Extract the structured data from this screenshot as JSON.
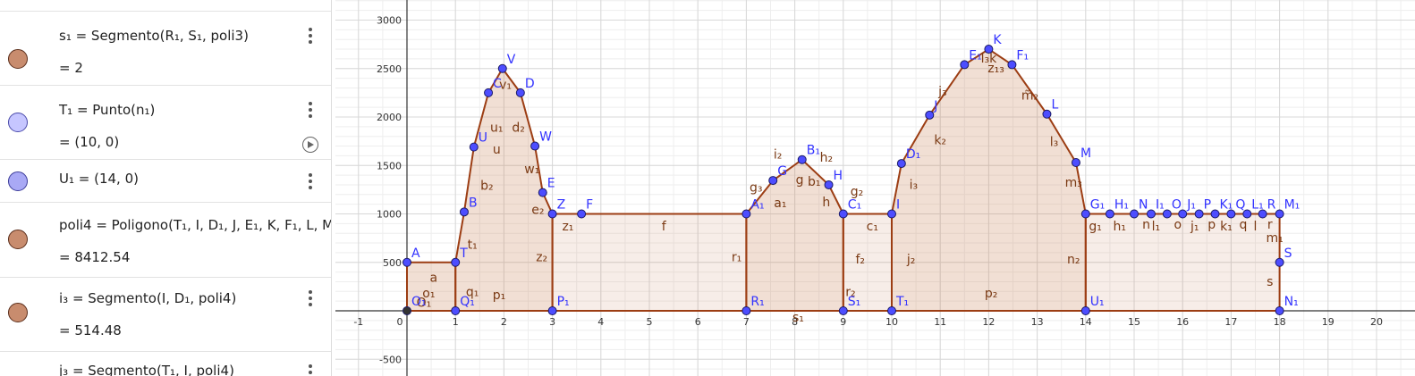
{
  "algebra": {
    "rows": [
      {
        "def": "s₁ = Segmento(R₁, S₁, poli3)",
        "value": "= 2",
        "color": "brown"
      },
      {
        "def": "T₁ = Punto(n₁)",
        "value": "= (10, 0)",
        "color": "blue"
      },
      {
        "def": "U₁ = (14, 0)",
        "value": "",
        "color": "blue2"
      },
      {
        "def": "poli4 = Poligono(T₁, I, D₁, J, E₁, K, F₁, L, M",
        "value": "= 8412.54",
        "color": "brown"
      },
      {
        "def": "i₃ = Segmento(I, D₁, poli4)",
        "value": "= 514.48",
        "color": "brown"
      },
      {
        "def": "j₃ = Segmento(T₁, I, poli4)",
        "value": "",
        "color": "brown"
      }
    ]
  },
  "graph": {
    "x_ticks": [
      "-1",
      "0",
      "1",
      "2",
      "3",
      "4",
      "5",
      "6",
      "7",
      "8",
      "9",
      "10",
      "11",
      "12",
      "13",
      "14",
      "15",
      "16",
      "17",
      "18",
      "19",
      "20"
    ],
    "y_ticks": [
      "3000",
      "2500",
      "2000",
      "1500",
      "1000",
      "500",
      "-500"
    ],
    "colors": {
      "segment": "#9c3d13",
      "fill": "#c8825a",
      "point": "#4d4dff",
      "label_point": "#3333ff",
      "label_segment": "#7a3a14"
    },
    "points": [
      {
        "x": 0,
        "y": 500,
        "label": "A"
      },
      {
        "x": 1,
        "y": 500,
        "label": "T"
      },
      {
        "x": 1.18,
        "y": 1020,
        "label": "B"
      },
      {
        "x": 1.38,
        "y": 1690,
        "label": "U"
      },
      {
        "x": 1.68,
        "y": 2250,
        "label": "C"
      },
      {
        "x": 1.97,
        "y": 2500,
        "label": "V"
      },
      {
        "x": 2.34,
        "y": 2250,
        "label": "D"
      },
      {
        "x": 2.64,
        "y": 1700,
        "label": "W"
      },
      {
        "x": 2.8,
        "y": 1220,
        "label": "E"
      },
      {
        "x": 3,
        "y": 1000,
        "label": "Z"
      },
      {
        "x": 3.6,
        "y": 1000,
        "label": "F"
      },
      {
        "x": 7,
        "y": 1000,
        "label": "A₁"
      },
      {
        "x": 7.55,
        "y": 1345,
        "label": "G"
      },
      {
        "x": 8.15,
        "y": 1560,
        "label": "B₁"
      },
      {
        "x": 8.7,
        "y": 1300,
        "label": "H"
      },
      {
        "x": 9,
        "y": 1000,
        "label": "C₁"
      },
      {
        "x": 10,
        "y": 1000,
        "label": "I"
      },
      {
        "x": 10.2,
        "y": 1520,
        "label": "D₁"
      },
      {
        "x": 10.78,
        "y": 2020,
        "label": "J"
      },
      {
        "x": 11.5,
        "y": 2540,
        "label": "E₁"
      },
      {
        "x": 12,
        "y": 2700,
        "label": "K"
      },
      {
        "x": 12.48,
        "y": 2540,
        "label": "F₁"
      },
      {
        "x": 13.2,
        "y": 2030,
        "label": "L"
      },
      {
        "x": 13.8,
        "y": 1530,
        "label": "M"
      },
      {
        "x": 14,
        "y": 1000,
        "label": "G₁"
      },
      {
        "x": 14.5,
        "y": 1000,
        "label": "H₁"
      },
      {
        "x": 15,
        "y": 1000,
        "label": "N"
      },
      {
        "x": 15.35,
        "y": 1000,
        "label": "I₁"
      },
      {
        "x": 15.68,
        "y": 1000,
        "label": "O"
      },
      {
        "x": 16,
        "y": 1000,
        "label": "J₁"
      },
      {
        "x": 16.34,
        "y": 1000,
        "label": "P"
      },
      {
        "x": 16.67,
        "y": 1000,
        "label": "K₁"
      },
      {
        "x": 17,
        "y": 1000,
        "label": "Q"
      },
      {
        "x": 17.33,
        "y": 1000,
        "label": "L₁"
      },
      {
        "x": 17.65,
        "y": 1000,
        "label": "R"
      },
      {
        "x": 18,
        "y": 1000,
        "label": "M₁"
      },
      {
        "x": 18,
        "y": 500,
        "label": "S"
      },
      {
        "x": 18,
        "y": 0,
        "label": "N₁"
      },
      {
        "x": 14,
        "y": 0,
        "label": "U₁"
      },
      {
        "x": 10,
        "y": 0,
        "label": "T₁"
      },
      {
        "x": 9,
        "y": 0,
        "label": "S₁"
      },
      {
        "x": 7,
        "y": 0,
        "label": "R₁"
      },
      {
        "x": 3,
        "y": 0,
        "label": "P₁"
      },
      {
        "x": 1,
        "y": 0,
        "label": "Q₁"
      },
      {
        "x": 0,
        "y": 0,
        "label": "O₁",
        "black": true
      }
    ],
    "segment_labels": [
      {
        "x": 0.45,
        "y": 140,
        "t": "o₁"
      },
      {
        "x": 0.55,
        "y": 300,
        "t": "a"
      },
      {
        "x": 0.35,
        "y": 40,
        "t": "O₁"
      },
      {
        "x": 1.35,
        "y": 150,
        "t": "q₁"
      },
      {
        "x": 1.9,
        "y": 120,
        "t": "p₁"
      },
      {
        "x": 1.35,
        "y": 640,
        "t": "t₁"
      },
      {
        "x": 1.65,
        "y": 1250,
        "t": "b₂"
      },
      {
        "x": 1.85,
        "y": 1620,
        "t": "u"
      },
      {
        "x": 1.85,
        "y": 1850,
        "t": "u₁"
      },
      {
        "x": 2.03,
        "y": 2290,
        "t": "v₁"
      },
      {
        "x": 2.3,
        "y": 1850,
        "t": "d₂"
      },
      {
        "x": 2.58,
        "y": 1420,
        "t": "w₁"
      },
      {
        "x": 2.7,
        "y": 1000,
        "t": "e₂"
      },
      {
        "x": 2.78,
        "y": 510,
        "t": "z₂"
      },
      {
        "x": 3.32,
        "y": 830,
        "t": "z₁"
      },
      {
        "x": 5.3,
        "y": 830,
        "t": "f"
      },
      {
        "x": 6.8,
        "y": 510,
        "t": "r₁"
      },
      {
        "x": 7.2,
        "y": 1230,
        "t": "g₃"
      },
      {
        "x": 7.7,
        "y": 1070,
        "t": "a₁"
      },
      {
        "x": 7.65,
        "y": 1570,
        "t": "i₂"
      },
      {
        "x": 8.1,
        "y": 1310,
        "t": "g"
      },
      {
        "x": 8.4,
        "y": 1290,
        "t": "b₁"
      },
      {
        "x": 8.65,
        "y": 1540,
        "t": "h₂"
      },
      {
        "x": 8.65,
        "y": 1080,
        "t": "h"
      },
      {
        "x": 9.28,
        "y": 1190,
        "t": "g₂"
      },
      {
        "x": 9.35,
        "y": 490,
        "t": "f₂"
      },
      {
        "x": 9.6,
        "y": 830,
        "t": "c₁"
      },
      {
        "x": 8.07,
        "y": -110,
        "t": "s₁"
      },
      {
        "x": 9.15,
        "y": 150,
        "t": "r₂"
      },
      {
        "x": 10.4,
        "y": 490,
        "t": "j₂"
      },
      {
        "x": 10.45,
        "y": 1260,
        "t": "i₃"
      },
      {
        "x": 11.0,
        "y": 1720,
        "t": "k₂"
      },
      {
        "x": 11.05,
        "y": 2220,
        "t": "j₃"
      },
      {
        "x": 12.0,
        "y": 2560,
        "t": "l₃k"
      },
      {
        "x": 12.15,
        "y": 2460,
        "t": "z₁₃"
      },
      {
        "x": 12.85,
        "y": 2180,
        "t": "m̃₂"
      },
      {
        "x": 13.35,
        "y": 1700,
        "t": "l₃"
      },
      {
        "x": 13.75,
        "y": 1280,
        "t": "m₃"
      },
      {
        "x": 13.75,
        "y": 490,
        "t": "n₂"
      },
      {
        "x": 12.05,
        "y": 140,
        "t": "p₂"
      },
      {
        "x": 14.2,
        "y": 830,
        "t": "g₁"
      },
      {
        "x": 14.7,
        "y": 830,
        "t": "h₁"
      },
      {
        "x": 15.25,
        "y": 850,
        "t": "n"
      },
      {
        "x": 15.45,
        "y": 830,
        "t": "l₁"
      },
      {
        "x": 15.9,
        "y": 850,
        "t": "o"
      },
      {
        "x": 16.25,
        "y": 830,
        "t": "j₁"
      },
      {
        "x": 16.6,
        "y": 850,
        "t": "p"
      },
      {
        "x": 16.9,
        "y": 830,
        "t": "k₁"
      },
      {
        "x": 17.25,
        "y": 850,
        "t": "q"
      },
      {
        "x": 17.5,
        "y": 830,
        "t": "l"
      },
      {
        "x": 17.8,
        "y": 850,
        "t": "r"
      },
      {
        "x": 17.9,
        "y": 710,
        "t": "m₁"
      },
      {
        "x": 17.8,
        "y": 260,
        "t": "s"
      }
    ]
  }
}
